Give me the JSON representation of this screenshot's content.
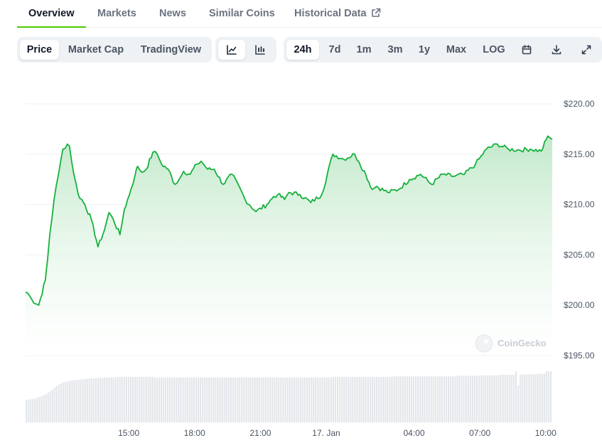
{
  "nav": {
    "tabs": [
      {
        "label": "Overview",
        "active": true
      },
      {
        "label": "Markets"
      },
      {
        "label": "News"
      },
      {
        "label": "Similar Coins"
      },
      {
        "label": "Historical Data",
        "icon": "external-link-icon"
      }
    ]
  },
  "controls": {
    "view_tabs": [
      "Price",
      "Market Cap",
      "TradingView"
    ],
    "view_active": "Price",
    "chart_type_icons": [
      "line-chart-icon",
      "candlestick-icon"
    ],
    "chart_type_active": "line-chart-icon",
    "ranges": [
      "24h",
      "7d",
      "1m",
      "3m",
      "1y",
      "Max",
      "LOG"
    ],
    "range_active": "24h",
    "tool_icons": [
      "calendar-icon",
      "download-icon",
      "expand-icon"
    ]
  },
  "watermark": "CoinGecko",
  "colors": {
    "line": "#16b13c",
    "fill_top": "#bfe8c8",
    "grid": "#eef0f3",
    "volume": "#e3e6ea",
    "accent": "#4bcc00"
  },
  "chart_data": {
    "type": "area",
    "title": "",
    "xlabel": "",
    "ylabel": "",
    "ylim": [
      195,
      220
    ],
    "yticks": [
      "$220.00",
      "$215.00",
      "$210.00",
      "$205.00",
      "$200.00",
      "$195.00"
    ],
    "xticks": [
      "15:00",
      "18:00",
      "21:00",
      "17. Jan",
      "04:00",
      "07:00",
      "10:00"
    ],
    "grid": true,
    "series": [
      {
        "x_hours": [
          0,
          0.1,
          0.3,
          0.6,
          0.9,
          1.0,
          1.1,
          1.3,
          1.5,
          1.7,
          1.9,
          2.0,
          2.2,
          2.4,
          2.7,
          3.0,
          3.3,
          3.6,
          3.8,
          4.0,
          4.3,
          4.5,
          4.8,
          5.0,
          5.1,
          5.3,
          5.5,
          5.8,
          6.0,
          6.2,
          6.5,
          6.8,
          7.0,
          7.2,
          7.5,
          7.8,
          8.0,
          8.3,
          8.6,
          9.0,
          9.4,
          9.8,
          10.0,
          10.5,
          11.0,
          11.3,
          11.5,
          11.8,
          12.0,
          12.5,
          13.0,
          13.5,
          14.0,
          14.5,
          15.0,
          15.2,
          15.5,
          15.8,
          16.0,
          16.5,
          17.0,
          17.5,
          18.0,
          18.5,
          19.0,
          19.5,
          20.0,
          20.5,
          21.0,
          21.5,
          22.0,
          22.5,
          23.0,
          23.5,
          23.8,
          24.0
        ],
        "price": [
          201.3,
          201.2,
          200.5,
          200.0,
          202.5,
          204.5,
          207.0,
          210.5,
          213.0,
          215.5,
          216.0,
          215.8,
          213.0,
          211.0,
          210.0,
          208.5,
          205.8,
          207.5,
          209.2,
          208.5,
          207.0,
          209.5,
          211.5,
          213.0,
          213.8,
          213.2,
          213.5,
          215.2,
          215.0,
          214.0,
          213.5,
          212.0,
          212.5,
          213.3,
          213.0,
          214.0,
          214.3,
          213.5,
          213.5,
          212.0,
          213.0,
          211.5,
          210.5,
          209.3,
          210.0,
          210.8,
          211.0,
          210.5,
          211.2,
          211.0,
          210.2,
          211.0,
          215.0,
          214.5,
          215.0,
          214.2,
          213.0,
          211.5,
          211.8,
          211.2,
          211.5,
          212.5,
          213.0,
          212.0,
          213.0,
          212.8,
          213.0,
          214.0,
          215.5,
          216.0,
          215.5,
          215.4,
          215.5,
          215.3,
          216.8,
          216.5
        ]
      }
    ],
    "volume_bars": [
      44,
      45,
      45,
      46,
      47,
      48,
      50,
      51,
      53,
      55,
      58,
      61,
      64,
      68,
      71,
      74,
      76,
      78,
      79,
      80,
      81,
      82,
      82,
      83,
      83,
      84,
      84,
      85,
      85,
      86,
      86,
      86,
      87,
      87,
      87,
      87,
      88,
      88,
      88,
      88,
      88,
      88,
      89,
      89,
      89,
      89,
      89,
      89,
      89,
      89,
      89,
      89,
      89,
      89,
      89,
      89,
      89,
      89,
      89,
      88,
      88,
      88,
      88,
      88,
      88,
      88,
      88,
      88,
      88,
      88,
      88,
      88,
      88,
      88,
      88,
      88,
      88,
      88,
      88,
      88,
      88,
      88,
      88,
      88,
      88,
      88,
      88,
      88,
      88,
      88,
      88,
      88,
      88,
      88,
      88,
      88,
      88,
      88,
      88,
      88,
      88,
      88,
      88,
      88,
      88,
      88,
      88,
      88,
      88,
      88,
      88,
      88,
      88,
      88,
      88,
      88,
      88,
      88,
      88,
      88,
      88,
      88,
      88,
      88,
      88,
      88,
      88,
      88,
      88,
      88,
      88,
      88,
      88,
      88,
      88,
      88,
      88,
      88,
      88,
      88,
      88,
      89,
      89,
      89,
      89,
      89,
      89,
      89,
      89,
      89,
      89,
      89,
      89,
      89,
      89,
      89,
      89,
      89,
      89,
      89,
      89,
      89,
      89,
      89,
      89,
      89,
      89,
      89,
      90,
      90,
      90,
      90,
      90,
      90,
      90,
      90,
      90,
      90,
      90,
      90,
      90,
      90,
      90,
      90,
      90,
      90,
      90,
      90,
      90,
      90,
      90,
      90,
      90,
      90,
      90,
      90,
      90,
      90,
      91,
      91,
      91,
      91,
      91,
      91,
      91,
      91,
      91,
      91,
      92,
      92,
      92,
      92,
      92,
      92,
      92,
      92,
      92,
      92,
      93,
      93,
      93,
      93,
      93,
      93,
      93,
      100,
      72,
      93,
      93,
      94,
      94,
      94,
      94,
      94,
      94,
      95,
      95,
      95,
      95,
      100,
      100,
      100
    ]
  }
}
